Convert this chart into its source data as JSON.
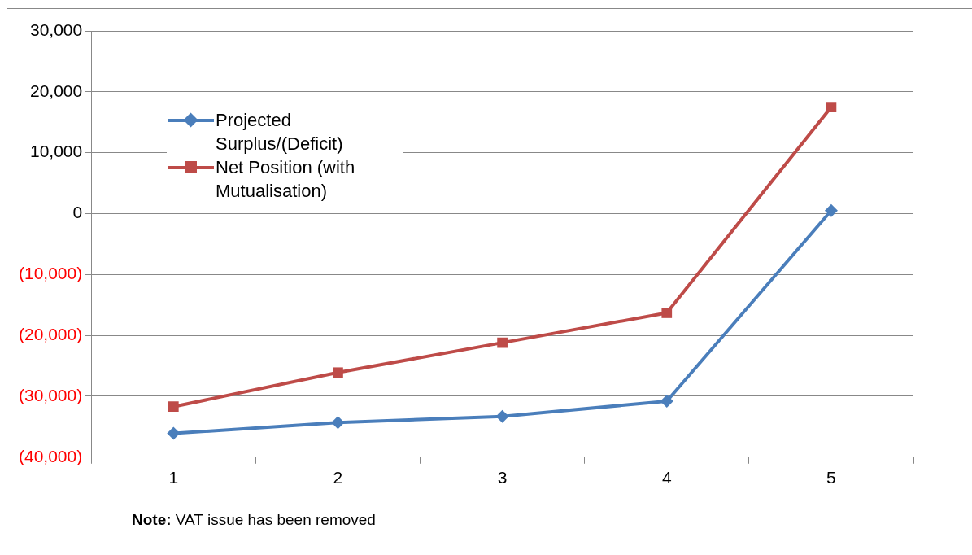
{
  "chart_data": {
    "type": "line",
    "categories": [
      "1",
      "2",
      "3",
      "4",
      "5"
    ],
    "series": [
      {
        "name": "Projected Surplus/(Deficit)",
        "color": "#4a7ebb",
        "marker": "diamond",
        "values": [
          -36100,
          -34300,
          -33300,
          -30800,
          500
        ]
      },
      {
        "name": "Net Position (with Mutualisation)",
        "color": "#be4b48",
        "marker": "square",
        "values": [
          -31700,
          -26100,
          -21200,
          -16300,
          17500
        ]
      }
    ],
    "ylim": [
      -40000,
      30000
    ],
    "yticks": [
      {
        "value": -40000,
        "label": "(40,000)"
      },
      {
        "value": -30000,
        "label": "(30,000)"
      },
      {
        "value": -20000,
        "label": "(20,000)"
      },
      {
        "value": -10000,
        "label": "(10,000)"
      },
      {
        "value": 0,
        "label": "0"
      },
      {
        "value": 10000,
        "label": "10,000"
      },
      {
        "value": 20000,
        "label": "20,000"
      },
      {
        "value": 30000,
        "label": "30,000"
      }
    ],
    "grid": "y",
    "legend": "top left",
    "line_style": "solid",
    "annotations": [
      "Note: VAT issue has been removed"
    ]
  }
}
